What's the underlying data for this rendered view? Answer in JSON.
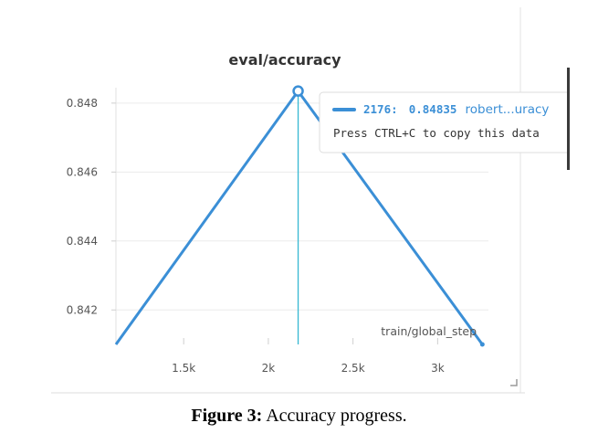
{
  "caption": {
    "label": "Figure 3:",
    "text": "Accuracy progress."
  },
  "tooltip": {
    "step": "2176:",
    "value": "0.84835",
    "series_name": "robert...uracy",
    "hint": "Press CTRL+C to copy this data"
  },
  "colors": {
    "series": "#3b8fd6",
    "hover_line": "#35b8d2",
    "grid": "#ececec"
  },
  "icons": [
    "resize-corner-icon"
  ],
  "chart_data": {
    "type": "line",
    "title": "eval/accuracy",
    "xlabel": "train/global_step",
    "ylabel": "",
    "xlim": [
      1100,
      3300
    ],
    "ylim": [
      0.841,
      0.8485
    ],
    "xticks": [
      1500,
      2000,
      2500,
      3000
    ],
    "xtick_labels": [
      "1.5k",
      "2k",
      "2.5k",
      "3k"
    ],
    "yticks": [
      0.842,
      0.844,
      0.846,
      0.848
    ],
    "ytick_labels": [
      "0.842",
      "0.844",
      "0.846",
      "0.848"
    ],
    "grid": true,
    "hover_x": 2176,
    "series": [
      {
        "name": "robert...uracy",
        "x": [
          1100,
          2176,
          3264
        ],
        "y": [
          0.841,
          0.84835,
          0.841
        ]
      }
    ]
  }
}
